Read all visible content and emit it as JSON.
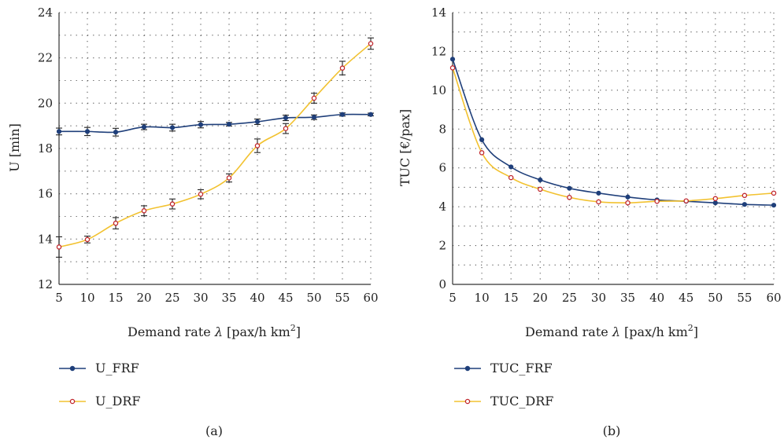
{
  "colors": {
    "frf": "#1f3f7a",
    "drf": "#f2c230",
    "drf_marker": "#c0262d",
    "grid": "#555555"
  },
  "chart_data": [
    {
      "type": "line",
      "panel_label": "(a)",
      "xlabel_prefix": "Demand rate ",
      "xlabel_symbol": "λ",
      "xlabel_unit": " [pax/h km",
      "xlabel_sup": "2",
      "xlabel_close": "]",
      "ylabel": "U [min]",
      "x": [
        5,
        10,
        15,
        20,
        25,
        30,
        35,
        40,
        45,
        50,
        55,
        60
      ],
      "xticks": [
        "5",
        "10",
        "15",
        "20",
        "25",
        "30",
        "35",
        "40",
        "45",
        "50",
        "55",
        "60"
      ],
      "yticks": [
        "12",
        "14",
        "16",
        "18",
        "20",
        "22",
        "24"
      ],
      "ylim": [
        12,
        24
      ],
      "grid": true,
      "legend_position": "bottom",
      "series": [
        {
          "name": "U_FRF",
          "marker": "filled",
          "values": [
            18.75,
            18.75,
            18.72,
            18.95,
            18.92,
            19.05,
            19.07,
            19.18,
            19.35,
            19.38,
            19.5,
            19.5
          ],
          "error": [
            0.15,
            0.18,
            0.17,
            0.12,
            0.15,
            0.14,
            0.08,
            0.12,
            0.12,
            0.1,
            0.07,
            0.06
          ]
        },
        {
          "name": "U_DRF",
          "marker": "open",
          "values": [
            13.65,
            13.98,
            14.7,
            15.25,
            15.55,
            15.98,
            16.7,
            18.12,
            18.88,
            20.22,
            21.55,
            22.63
          ],
          "error": [
            0.45,
            0.15,
            0.25,
            0.22,
            0.22,
            0.2,
            0.18,
            0.3,
            0.22,
            0.22,
            0.3,
            0.25
          ]
        }
      ]
    },
    {
      "type": "line",
      "panel_label": "(b)",
      "xlabel_prefix": "Demand rate ",
      "xlabel_symbol": "λ",
      "xlabel_unit": " [pax/h km",
      "xlabel_sup": "2",
      "xlabel_close": "]",
      "ylabel": "TUC [€/pax]",
      "x": [
        5,
        10,
        15,
        20,
        25,
        30,
        35,
        40,
        45,
        50,
        55,
        60
      ],
      "xticks": [
        "5",
        "10",
        "15",
        "20",
        "25",
        "30",
        "35",
        "40",
        "45",
        "50",
        "55",
        "60"
      ],
      "yticks": [
        "0",
        "2",
        "4",
        "6",
        "8",
        "10",
        "12",
        "14"
      ],
      "ylim": [
        0,
        14
      ],
      "grid": true,
      "legend_position": "bottom",
      "series": [
        {
          "name": "TUC_FRF",
          "marker": "filled",
          "values": [
            11.6,
            7.45,
            6.05,
            5.38,
            4.95,
            4.7,
            4.5,
            4.35,
            4.28,
            4.2,
            4.12,
            4.08
          ]
        },
        {
          "name": "TUC_DRF",
          "marker": "open",
          "values": [
            11.15,
            6.78,
            5.5,
            4.9,
            4.48,
            4.25,
            4.2,
            4.28,
            4.3,
            4.42,
            4.58,
            4.7
          ]
        }
      ]
    }
  ]
}
